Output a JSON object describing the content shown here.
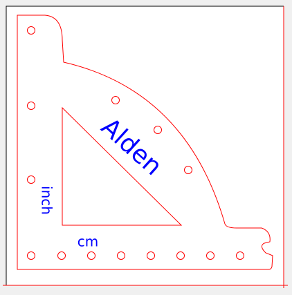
{
  "drawing": {
    "engraved_text": {
      "name": "Alden",
      "unit_vertical": "inch",
      "unit_horizontal": "cm"
    },
    "colors": {
      "background": "#f0f0f0",
      "sheet": "#ffffff",
      "cut_line": "#ff0000",
      "engrave_text": "#0000ff",
      "border": "#000000"
    }
  }
}
